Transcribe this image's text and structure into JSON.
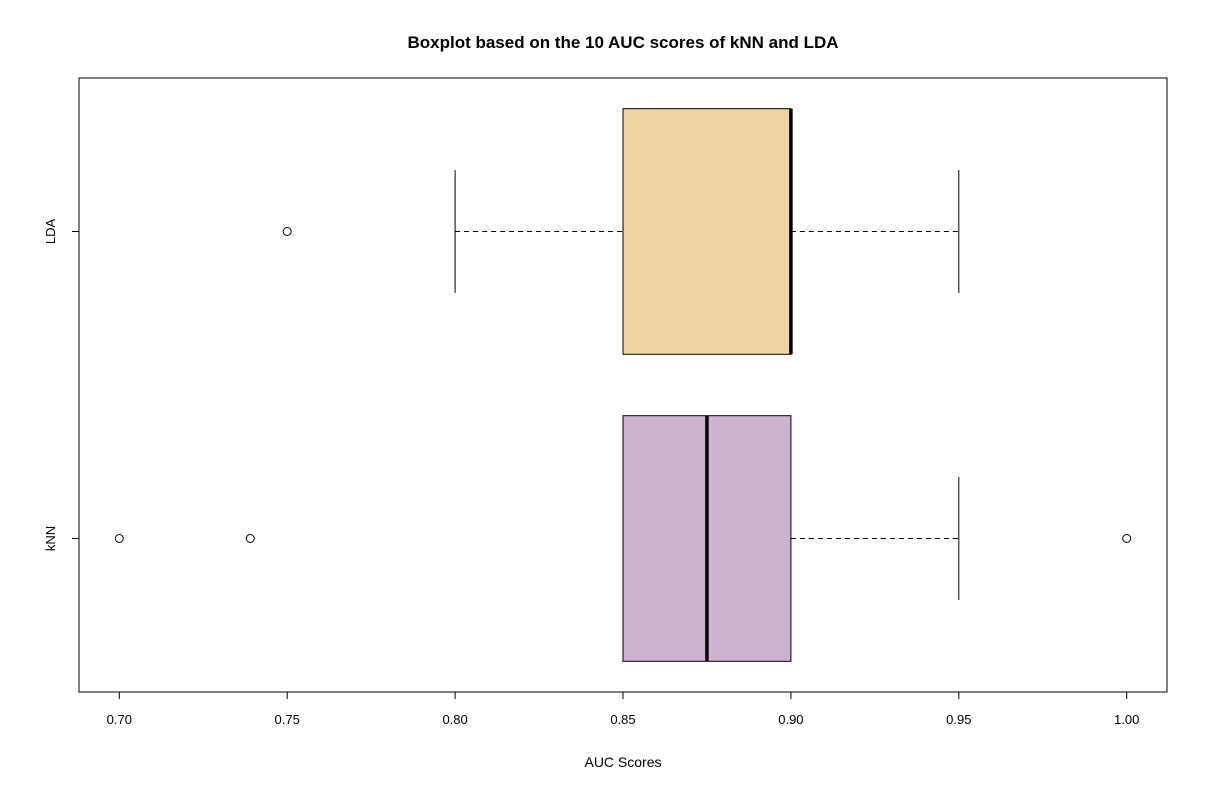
{
  "chart_data": {
    "type": "boxplot",
    "orientation": "horizontal",
    "title": "Boxplot based on the 10 AUC scores of kNN and LDA",
    "xlabel": "AUC Scores",
    "ylabel": "",
    "xlim": [
      0.688,
      1.012
    ],
    "x_ticks": [
      0.7,
      0.75,
      0.8,
      0.85,
      0.9,
      0.95,
      1.0
    ],
    "x_tick_labels": [
      "0.70",
      "0.75",
      "0.80",
      "0.85",
      "0.90",
      "0.95",
      "1.00"
    ],
    "grid": false,
    "legend": "none",
    "categories": [
      "kNN",
      "LDA"
    ],
    "series": [
      {
        "category": "kNN",
        "whisker_low": 0.85,
        "q1": 0.85,
        "median": 0.875,
        "q3": 0.9,
        "whisker_high": 0.95,
        "outliers": [
          0.7,
          0.739,
          1.0
        ],
        "color": "#cfb2cf"
      },
      {
        "category": "LDA",
        "whisker_low": 0.8,
        "q1": 0.85,
        "median": 0.9,
        "q3": 0.9,
        "whisker_high": 0.95,
        "outliers": [
          0.75
        ],
        "color": "#f2d5a3"
      }
    ]
  }
}
